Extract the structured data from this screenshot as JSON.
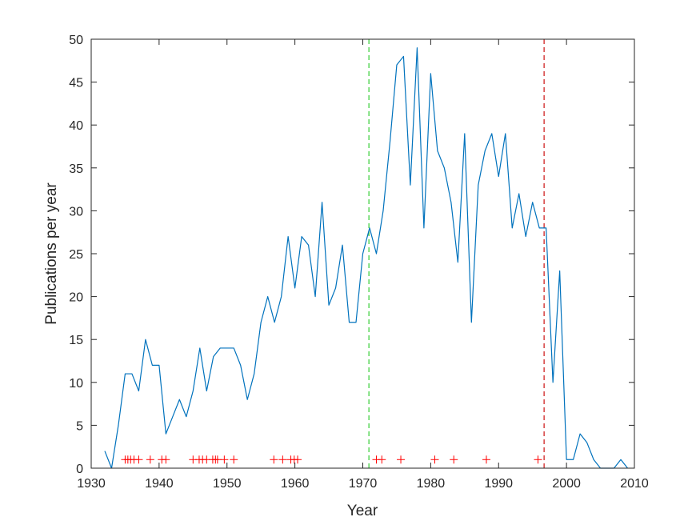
{
  "chart_data": {
    "type": "line",
    "title": "",
    "xlabel": "Year",
    "ylabel": "Publications per year",
    "xlim": [
      1930,
      2010
    ],
    "ylim": [
      0,
      50
    ],
    "xticks": [
      1930,
      1940,
      1950,
      1960,
      1970,
      1980,
      1990,
      2000,
      2010
    ],
    "yticks": [
      0,
      5,
      10,
      15,
      20,
      25,
      30,
      35,
      40,
      45,
      50
    ],
    "grid": false,
    "line_color": "#0072BD",
    "series": [
      {
        "x": [
          1932,
          1933,
          1934,
          1935,
          1936,
          1937,
          1938,
          1939,
          1940,
          1941,
          1942,
          1943,
          1944,
          1945,
          1946,
          1947,
          1948,
          1949,
          1950,
          1951,
          1952,
          1953,
          1954,
          1955,
          1956,
          1957,
          1958,
          1959,
          1960,
          1961,
          1962,
          1963,
          1964,
          1965,
          1966,
          1967,
          1968,
          1969,
          1970,
          1971,
          1972,
          1973,
          1974,
          1975,
          1976,
          1977,
          1978,
          1979,
          1980,
          1981,
          1982,
          1983,
          1984,
          1985,
          1986,
          1987,
          1988,
          1989,
          1990,
          1991,
          1992,
          1993,
          1994,
          1995,
          1996,
          1997,
          1998,
          1999,
          2000,
          2001,
          2002,
          2003,
          2004,
          2005,
          2006,
          2007,
          2008,
          2009
        ],
        "values": [
          2,
          0,
          5,
          11,
          11,
          9,
          15,
          12,
          12,
          4,
          6,
          8,
          6,
          9,
          14,
          9,
          13,
          14,
          14,
          14,
          12,
          8,
          11,
          17,
          20,
          17,
          20,
          27,
          21,
          27,
          26,
          20,
          31,
          19,
          21,
          26,
          17,
          17,
          25,
          28,
          25,
          30,
          38,
          47,
          48,
          33,
          49,
          28,
          46,
          37,
          35,
          31,
          24,
          39,
          17,
          33,
          37,
          39,
          34,
          39,
          28,
          32,
          27,
          31,
          28,
          28,
          10,
          23,
          1,
          1,
          4,
          3,
          1,
          0,
          0,
          0,
          1,
          0
        ]
      }
    ],
    "markers": {
      "symbol": "+",
      "color": "#ff0000",
      "y": 1,
      "x": [
        1935.0,
        1935.4,
        1935.8,
        1936.3,
        1937.0,
        1938.7,
        1940.4,
        1941.0,
        1945.0,
        1945.9,
        1946.4,
        1947.0,
        1947.9,
        1948.3,
        1948.6,
        1949.6,
        1951.0,
        1956.9,
        1958.2,
        1959.4,
        1959.9,
        1960.4,
        1972.0,
        1972.8,
        1975.6,
        1980.6,
        1983.4,
        1988.2,
        1995.8
      ]
    },
    "vertical_lines": [
      {
        "x": 1970.9,
        "color": "#33cc33",
        "style": "dashed"
      },
      {
        "x": 1996.7,
        "color": "#cc1111",
        "style": "dashed"
      }
    ]
  }
}
